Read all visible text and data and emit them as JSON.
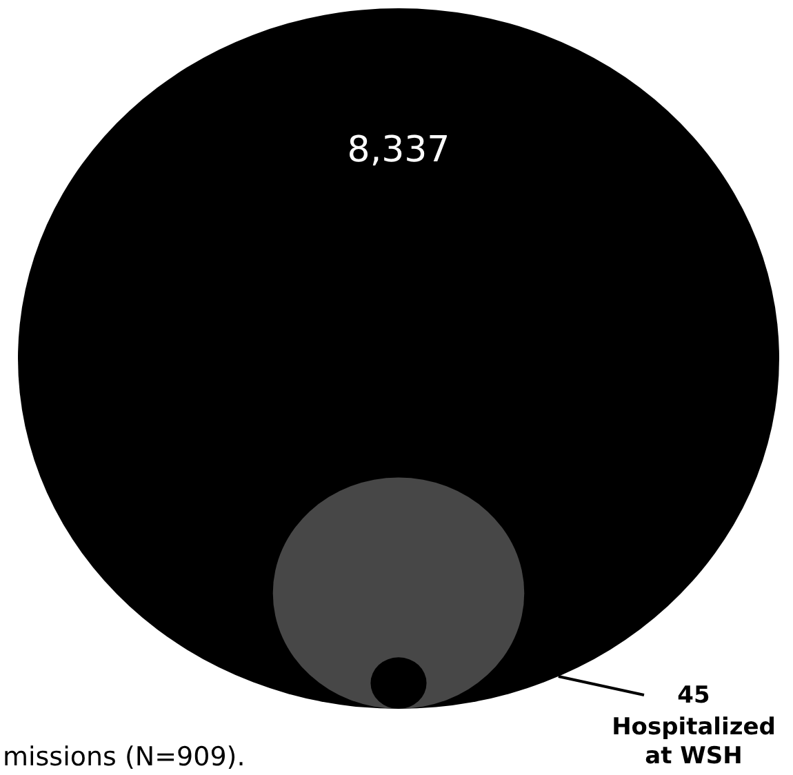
{
  "chart_data": {
    "type": "other",
    "categories": [
      null,
      "missions",
      "Hospitalized at WSH"
    ],
    "values": [
      8337,
      909,
      45
    ],
    "value_labels": [
      "8,337",
      "(N=909).",
      "45"
    ],
    "colors": [
      "#000000",
      "#474747",
      "#000000"
    ]
  }
}
